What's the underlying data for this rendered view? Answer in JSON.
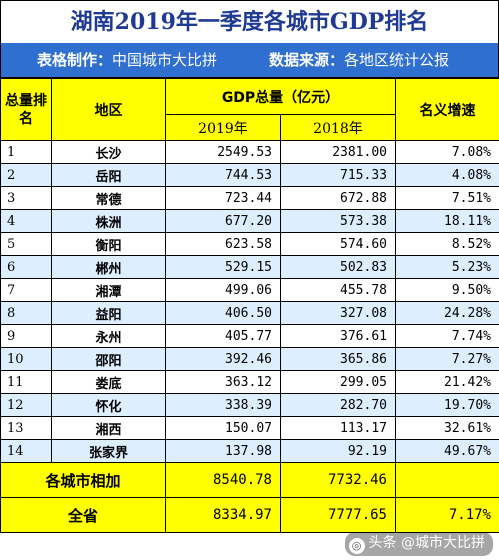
{
  "title": "湖南2019年一季度各城市GDP排名",
  "subtitle": {
    "maker_key": "表格制作：",
    "maker_value": "中国城市大比拼",
    "source_key": "数据来源：",
    "source_value": "各地区统计公报"
  },
  "header": {
    "rank": "总量排名",
    "region": "地区",
    "gdp": "GDP总量（亿元）",
    "y2019": "2019年",
    "y2018": "2018年",
    "growth": "名义增速"
  },
  "rows": [
    {
      "rank": "1",
      "region": "长沙",
      "y2019": "2549.53",
      "y2018": "2381.00",
      "growth": "7.08%"
    },
    {
      "rank": "2",
      "region": "岳阳",
      "y2019": "744.53",
      "y2018": "715.33",
      "growth": "4.08%"
    },
    {
      "rank": "3",
      "region": "常德",
      "y2019": "723.44",
      "y2018": "672.88",
      "growth": "7.51%"
    },
    {
      "rank": "4",
      "region": "株洲",
      "y2019": "677.20",
      "y2018": "573.38",
      "growth": "18.11%"
    },
    {
      "rank": "5",
      "region": "衡阳",
      "y2019": "623.58",
      "y2018": "574.60",
      "growth": "8.52%"
    },
    {
      "rank": "6",
      "region": "郴州",
      "y2019": "529.15",
      "y2018": "502.83",
      "growth": "5.23%"
    },
    {
      "rank": "7",
      "region": "湘潭",
      "y2019": "499.06",
      "y2018": "455.78",
      "growth": "9.50%"
    },
    {
      "rank": "8",
      "region": "益阳",
      "y2019": "406.50",
      "y2018": "327.08",
      "growth": "24.28%"
    },
    {
      "rank": "9",
      "region": "永州",
      "y2019": "405.77",
      "y2018": "376.61",
      "growth": "7.74%"
    },
    {
      "rank": "10",
      "region": "邵阳",
      "y2019": "392.46",
      "y2018": "365.86",
      "growth": "7.27%"
    },
    {
      "rank": "11",
      "region": "娄底",
      "y2019": "363.12",
      "y2018": "299.05",
      "growth": "21.42%"
    },
    {
      "rank": "12",
      "region": "怀化",
      "y2019": "338.39",
      "y2018": "282.70",
      "growth": "19.70%"
    },
    {
      "rank": "13",
      "region": "湘西",
      "y2019": "150.07",
      "y2018": "113.17",
      "growth": "32.61%"
    },
    {
      "rank": "14",
      "region": "张家界",
      "y2019": "137.98",
      "y2018": "92.19",
      "growth": "49.67%"
    }
  ],
  "totals": [
    {
      "label": "各城市相加",
      "y2019": "8540.78",
      "y2018": "7732.46",
      "growth": ""
    },
    {
      "label": "全省",
      "y2019": "8334.97",
      "y2018": "7777.65",
      "growth": "7.17%"
    }
  ],
  "watermark": {
    "icon": "headline-icon",
    "text": "头条 @城市大比拼"
  }
}
